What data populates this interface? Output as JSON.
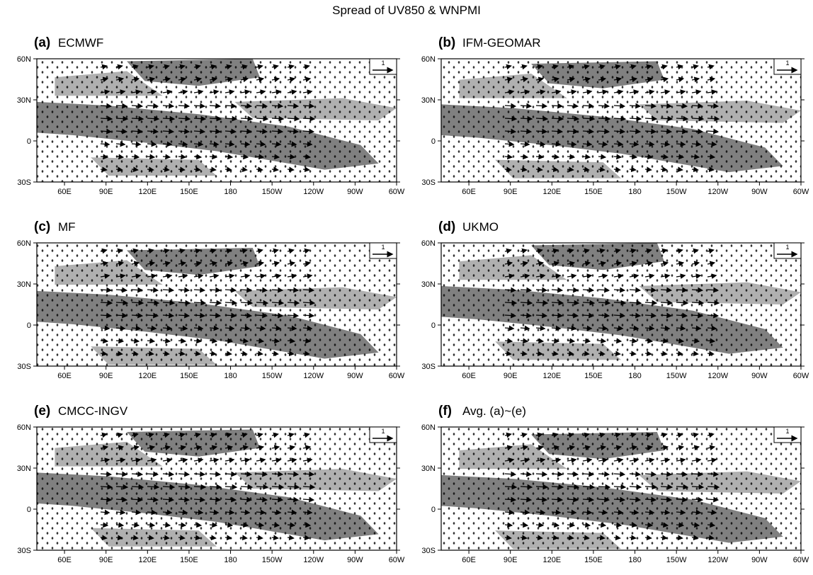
{
  "title": "Spread of UV850 & WNPMI",
  "panels": [
    {
      "label": "(a)",
      "name": "ECMWF"
    },
    {
      "label": "(b)",
      "name": "IFM-GEOMAR"
    },
    {
      "label": "(c)",
      "name": "MF"
    },
    {
      "label": "(d)",
      "name": "UKMO"
    },
    {
      "label": "(e)",
      "name": "CMCC-INGV"
    },
    {
      "label": "(f)",
      "name": "Avg. (a)~(e)"
    }
  ],
  "lat_ticks": [
    "60N",
    "30N",
    "0",
    "30S"
  ],
  "lon_ticks": [
    "60E",
    "90E",
    "120E",
    "150E",
    "180",
    "150W",
    "120W",
    "90W",
    "60W"
  ],
  "reference_vector": "1"
}
